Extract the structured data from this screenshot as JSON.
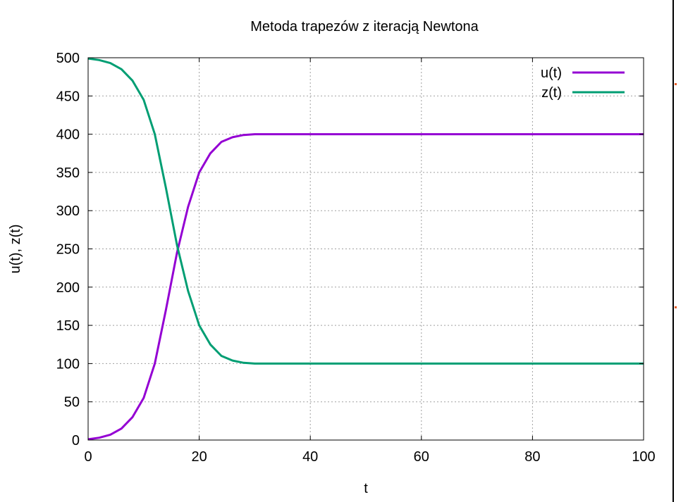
{
  "chart_data": {
    "type": "line",
    "title": "Metoda trapezów z iteracją Newtona",
    "xlabel": "t",
    "ylabel": "u(t), z(t)",
    "xlim": [
      0,
      100
    ],
    "ylim": [
      0,
      500
    ],
    "xticks": [
      "0",
      "20",
      "40",
      "60",
      "80",
      "100"
    ],
    "yticks": [
      "0",
      "50",
      "100",
      "150",
      "200",
      "250",
      "300",
      "350",
      "400",
      "450",
      "500"
    ],
    "grid": true,
    "legend_position": "top-right",
    "series": [
      {
        "name": "u(t)",
        "color": "#9400d3",
        "x": [
          0,
          2,
          4,
          6,
          8,
          10,
          12,
          14,
          16,
          18,
          20,
          22,
          24,
          26,
          28,
          30,
          35,
          40,
          50,
          60,
          70,
          80,
          90,
          100
        ],
        "y": [
          1,
          3,
          7,
          15,
          30,
          55,
          100,
          170,
          245,
          305,
          350,
          375,
          390,
          396,
          399,
          400,
          400,
          400,
          400,
          400,
          400,
          400,
          400,
          400
        ]
      },
      {
        "name": "z(t)",
        "color": "#009e73",
        "x": [
          0,
          2,
          4,
          6,
          8,
          10,
          12,
          14,
          16,
          18,
          20,
          22,
          24,
          26,
          28,
          30,
          35,
          40,
          50,
          60,
          70,
          80,
          90,
          100
        ],
        "y": [
          499,
          497,
          493,
          485,
          470,
          445,
          400,
          330,
          255,
          195,
          150,
          125,
          110,
          104,
          101,
          100,
          100,
          100,
          100,
          100,
          100,
          100,
          100,
          100
        ]
      }
    ]
  }
}
